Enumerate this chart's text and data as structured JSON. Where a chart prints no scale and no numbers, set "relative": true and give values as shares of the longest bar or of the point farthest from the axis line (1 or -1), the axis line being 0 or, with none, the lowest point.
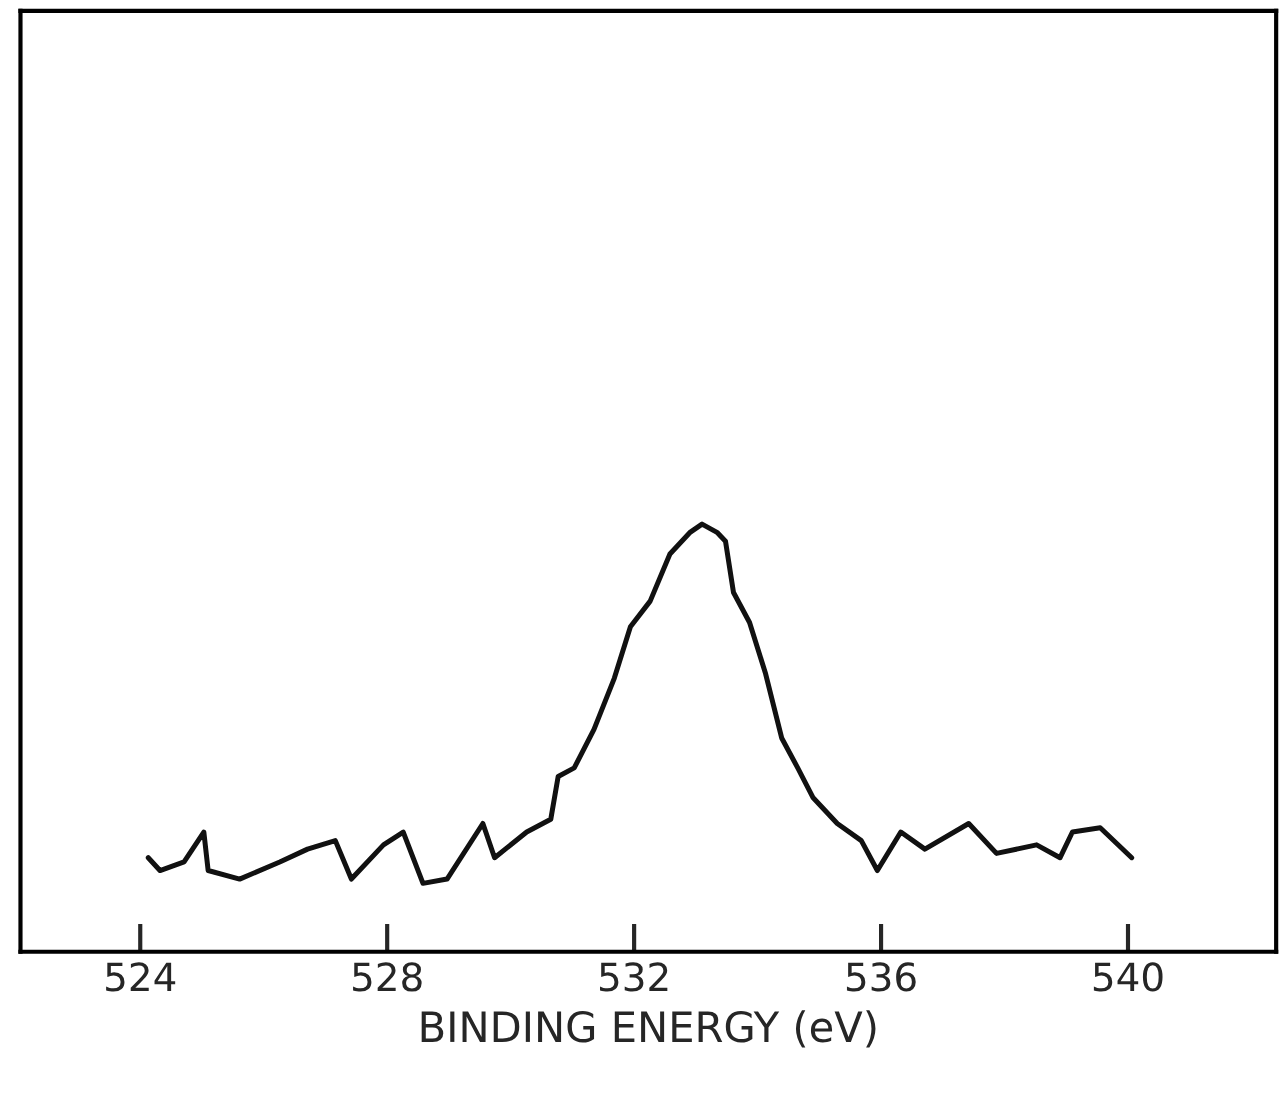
{
  "chart_data": {
    "type": "line",
    "xlabel": "BINDING ENERGY (eV)",
    "relative": true,
    "tick_labels": "x",
    "grid": false,
    "legend": false,
    "marker": "none",
    "line_style": "solid",
    "xlim": [
      522.06,
      542.4
    ],
    "xticks": [
      524,
      528,
      532,
      536,
      540
    ],
    "series": [
      {
        "color": "#111111",
        "x": [
          524.13,
          524.32,
          524.71,
          525.03,
          525.1,
          525.61,
          526.26,
          526.71,
          527.16,
          527.42,
          527.94,
          528.26,
          528.58,
          528.97,
          529.55,
          529.74,
          530.26,
          530.65,
          530.77,
          531.03,
          531.35,
          531.68,
          531.94,
          532.26,
          532.58,
          532.9,
          533.1,
          533.35,
          533.48,
          533.61,
          533.87,
          534.13,
          534.39,
          534.65,
          534.9,
          535.29,
          535.68,
          535.94,
          536.32,
          536.71,
          537.42,
          537.87,
          538.52,
          538.9,
          539.1,
          539.55,
          540.06
        ],
        "values": [
          0.22,
          0.19,
          0.21,
          0.28,
          0.19,
          0.17,
          0.21,
          0.24,
          0.26,
          0.17,
          0.25,
          0.28,
          0.16,
          0.17,
          0.3,
          0.22,
          0.28,
          0.31,
          0.41,
          0.43,
          0.52,
          0.64,
          0.76,
          0.82,
          0.93,
          0.98,
          1.0,
          0.98,
          0.96,
          0.84,
          0.77,
          0.65,
          0.5,
          0.43,
          0.36,
          0.3,
          0.26,
          0.19,
          0.28,
          0.24,
          0.3,
          0.23,
          0.25,
          0.22,
          0.28,
          0.29,
          0.22
        ]
      }
    ]
  }
}
